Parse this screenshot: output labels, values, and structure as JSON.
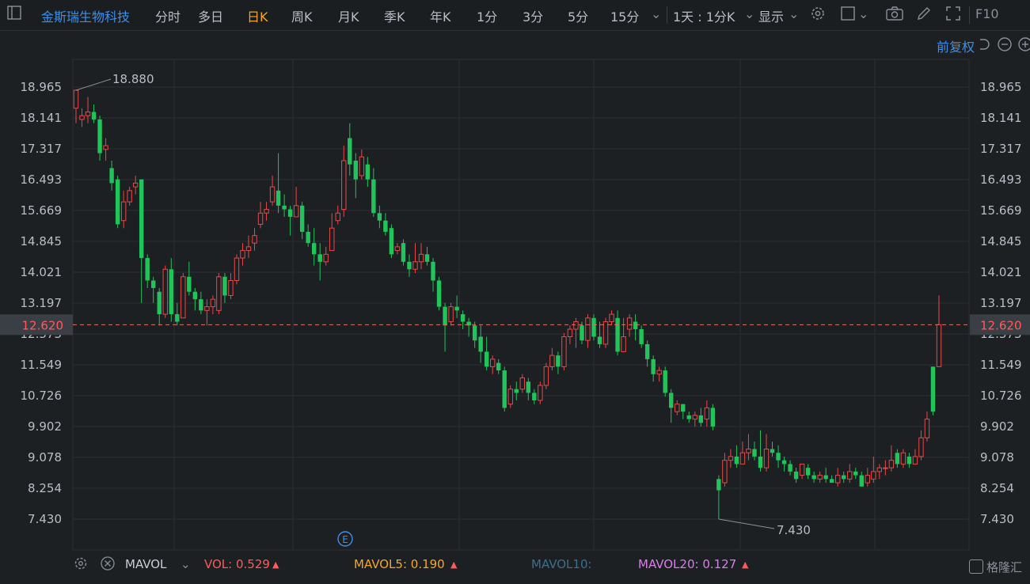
{
  "toolbar": {
    "stock_name": "金斯瑞生物科技",
    "tabs": [
      "分时",
      "多日",
      "日K",
      "周K",
      "月K",
      "季K",
      "年K",
      "1分",
      "3分",
      "5分",
      "15分"
    ],
    "active_tab": "日K",
    "period_select": "1天 : 1分K",
    "display_label": "显示",
    "f10_label": "F10"
  },
  "adjust_label": "前复权",
  "price_axis": {
    "ticks": [
      "18.965",
      "18.141",
      "17.317",
      "16.493",
      "15.669",
      "14.845",
      "14.021",
      "13.197",
      "12.373",
      "11.549",
      "10.726",
      "9.902",
      "9.078",
      "8.254",
      "7.430"
    ],
    "current_price": "12.620",
    "max_label": "18.880",
    "min_label": "7.430"
  },
  "colors": {
    "up": "#e84848",
    "down": "#21c35b",
    "background": "#1d2023",
    "grid": "#2c3035",
    "accent": "#f5a623"
  },
  "indicator": {
    "name": "MAVOL",
    "vol_label": "VOL: 0.529",
    "mavol5_label": "MAVOL5: 0.190",
    "mavol10_label": "MAVOL10:",
    "mavol20_label": "MAVOL20: 0.127"
  },
  "watermark": "格隆汇",
  "chart_data": {
    "type": "candlestick",
    "y_range": [
      7.0,
      19.4
    ],
    "candles": [
      [
        18.4,
        18.88,
        18.0,
        18.9
      ],
      [
        18.1,
        18.2,
        17.9,
        18.4
      ],
      [
        18.2,
        18.3,
        18.0,
        18.7
      ],
      [
        18.3,
        18.1,
        18.0,
        18.5
      ],
      [
        18.1,
        17.2,
        17.0,
        18.2
      ],
      [
        17.3,
        17.4,
        17.0,
        17.6
      ],
      [
        16.8,
        16.4,
        16.2,
        17.0
      ],
      [
        16.5,
        15.3,
        15.2,
        16.6
      ],
      [
        15.4,
        15.9,
        15.2,
        16.2
      ],
      [
        15.9,
        16.2,
        15.8,
        16.3
      ],
      [
        16.3,
        16.4,
        16.1,
        16.6
      ],
      [
        16.5,
        14.4,
        13.2,
        16.5
      ],
      [
        14.4,
        13.8,
        13.6,
        14.5
      ],
      [
        13.8,
        13.6,
        13.2,
        13.9
      ],
      [
        13.5,
        12.9,
        12.6,
        13.6
      ],
      [
        12.9,
        14.1,
        12.8,
        14.2
      ],
      [
        14.1,
        12.9,
        12.7,
        14.4
      ],
      [
        12.9,
        12.7,
        12.6,
        13.2
      ],
      [
        12.8,
        13.9,
        12.9,
        14.0
      ],
      [
        13.9,
        13.5,
        13.4,
        14.3
      ],
      [
        13.5,
        13.3,
        13.0,
        13.6
      ],
      [
        13.3,
        13.0,
        12.9,
        13.5
      ],
      [
        13.0,
        13.1,
        12.6,
        13.3
      ],
      [
        13.1,
        13.3,
        12.9,
        13.4
      ],
      [
        13.0,
        13.9,
        12.9,
        14.0
      ],
      [
        13.9,
        13.4,
        13.2,
        14.0
      ],
      [
        13.4,
        13.8,
        13.3,
        14.0
      ],
      [
        13.8,
        14.4,
        13.7,
        14.5
      ],
      [
        14.4,
        14.6,
        14.2,
        14.8
      ],
      [
        14.6,
        14.7,
        14.4,
        15.0
      ],
      [
        14.8,
        15.0,
        14.6,
        15.2
      ],
      [
        15.3,
        15.6,
        15.2,
        15.9
      ],
      [
        15.6,
        15.7,
        15.4,
        15.9
      ],
      [
        15.9,
        16.3,
        15.8,
        16.6
      ],
      [
        16.2,
        15.8,
        15.6,
        17.2
      ],
      [
        15.8,
        15.7,
        15.5,
        16.1
      ],
      [
        15.7,
        15.5,
        15.0,
        15.8
      ],
      [
        15.5,
        15.8,
        15.5,
        16.3
      ],
      [
        15.8,
        15.1,
        14.9,
        15.9
      ],
      [
        15.1,
        14.8,
        14.7,
        15.3
      ],
      [
        14.8,
        14.5,
        14.2,
        15.2
      ],
      [
        14.5,
        14.3,
        13.8,
        14.8
      ],
      [
        14.3,
        14.5,
        14.2,
        14.7
      ],
      [
        14.6,
        15.2,
        14.6,
        15.6
      ],
      [
        15.4,
        15.6,
        15.3,
        15.8
      ],
      [
        15.7,
        17.0,
        15.5,
        17.4
      ],
      [
        17.6,
        16.9,
        16.6,
        18.0
      ],
      [
        17.0,
        16.5,
        16.0,
        17.2
      ],
      [
        16.6,
        17.1,
        16.5,
        17.3
      ],
      [
        16.9,
        16.5,
        16.3,
        17.1
      ],
      [
        16.5,
        15.6,
        15.5,
        16.8
      ],
      [
        15.6,
        15.4,
        15.2,
        15.8
      ],
      [
        15.4,
        15.1,
        15.0,
        15.6
      ],
      [
        15.2,
        14.5,
        14.4,
        15.3
      ],
      [
        14.6,
        14.7,
        14.5,
        14.8
      ],
      [
        14.8,
        14.3,
        14.2,
        14.9
      ],
      [
        14.3,
        14.1,
        13.9,
        14.5
      ],
      [
        14.1,
        14.3,
        14.0,
        14.8
      ],
      [
        14.3,
        14.5,
        14.1,
        14.8
      ],
      [
        14.5,
        14.3,
        14.2,
        14.7
      ],
      [
        14.3,
        13.8,
        13.5,
        14.4
      ],
      [
        13.8,
        13.1,
        13.0,
        13.9
      ],
      [
        13.1,
        12.6,
        11.9,
        13.2
      ],
      [
        12.7,
        13.1,
        12.6,
        13.2
      ],
      [
        13.1,
        13.0,
        12.8,
        13.4
      ],
      [
        12.9,
        12.7,
        12.5,
        13.0
      ],
      [
        12.7,
        12.6,
        12.3,
        12.8
      ],
      [
        12.6,
        12.2,
        12.0,
        12.7
      ],
      [
        12.3,
        11.9,
        11.6,
        12.6
      ],
      [
        11.9,
        11.5,
        11.4,
        12.3
      ],
      [
        11.5,
        11.7,
        11.3,
        11.8
      ],
      [
        11.6,
        11.4,
        11.3,
        11.7
      ],
      [
        11.4,
        10.4,
        10.3,
        11.5
      ],
      [
        10.5,
        10.9,
        10.4,
        11.0
      ],
      [
        10.9,
        10.8,
        10.6,
        11.1
      ],
      [
        10.9,
        11.2,
        10.8,
        11.3
      ],
      [
        11.1,
        10.8,
        10.6,
        11.2
      ],
      [
        10.8,
        10.6,
        10.5,
        10.9
      ],
      [
        10.6,
        11.0,
        10.5,
        11.1
      ],
      [
        11.0,
        11.5,
        10.9,
        11.6
      ],
      [
        11.5,
        11.8,
        11.4,
        12.0
      ],
      [
        11.8,
        11.5,
        11.3,
        11.9
      ],
      [
        11.5,
        12.3,
        11.4,
        12.4
      ],
      [
        12.3,
        12.5,
        12.1,
        12.6
      ],
      [
        12.5,
        12.7,
        12.0,
        12.8
      ],
      [
        12.6,
        12.2,
        12.1,
        12.7
      ],
      [
        12.2,
        12.8,
        12.0,
        12.9
      ],
      [
        12.8,
        12.3,
        12.2,
        12.9
      ],
      [
        12.3,
        12.1,
        12.0,
        12.7
      ],
      [
        12.1,
        12.7,
        12.0,
        12.8
      ],
      [
        12.7,
        12.9,
        12.6,
        13.0
      ],
      [
        12.8,
        11.9,
        11.8,
        13.0
      ],
      [
        11.9,
        12.3,
        11.9,
        12.8
      ],
      [
        12.5,
        12.8,
        12.3,
        12.9
      ],
      [
        12.7,
        12.5,
        12.2,
        12.9
      ],
      [
        12.5,
        12.1,
        12.0,
        12.6
      ],
      [
        12.1,
        11.7,
        11.5,
        12.2
      ],
      [
        11.7,
        11.3,
        11.1,
        11.8
      ],
      [
        11.3,
        11.4,
        11.1,
        11.5
      ],
      [
        11.4,
        10.8,
        10.7,
        11.5
      ],
      [
        10.8,
        10.4,
        10.0,
        10.9
      ],
      [
        10.3,
        10.5,
        10.2,
        10.6
      ],
      [
        10.5,
        10.3,
        10.1,
        10.5
      ],
      [
        10.2,
        10.1,
        10.0,
        10.3
      ],
      [
        10.1,
        10.2,
        9.9,
        10.3
      ],
      [
        10.2,
        10.0,
        9.9,
        10.4
      ],
      [
        10.1,
        10.4,
        9.9,
        10.6
      ],
      [
        10.4,
        9.9,
        9.8,
        10.5
      ],
      [
        8.5,
        8.2,
        7.43,
        8.6
      ],
      [
        8.4,
        9.0,
        8.3,
        9.2
      ],
      [
        9.0,
        9.1,
        8.8,
        9.3
      ],
      [
        9.1,
        8.9,
        8.8,
        9.4
      ],
      [
        8.9,
        9.2,
        8.9,
        9.5
      ],
      [
        9.2,
        9.3,
        9.0,
        9.7
      ],
      [
        9.3,
        9.1,
        9.0,
        9.5
      ],
      [
        9.1,
        8.8,
        8.7,
        9.8
      ],
      [
        8.8,
        9.3,
        8.7,
        9.7
      ],
      [
        9.3,
        9.2,
        9.1,
        9.5
      ],
      [
        9.2,
        9.0,
        8.8,
        9.4
      ],
      [
        9.0,
        8.9,
        8.7,
        9.1
      ],
      [
        8.9,
        8.7,
        8.6,
        9.0
      ],
      [
        8.7,
        8.5,
        8.4,
        8.8
      ],
      [
        8.6,
        8.9,
        8.5,
        8.9
      ],
      [
        8.8,
        8.6,
        8.5,
        8.9
      ],
      [
        8.6,
        8.5,
        8.4,
        8.7
      ],
      [
        8.5,
        8.6,
        8.4,
        8.7
      ],
      [
        8.6,
        8.5,
        8.4,
        8.8
      ],
      [
        8.5,
        8.4,
        8.4,
        8.6
      ],
      [
        8.4,
        8.6,
        8.3,
        8.8
      ],
      [
        8.6,
        8.5,
        8.4,
        8.7
      ],
      [
        8.5,
        8.7,
        8.4,
        8.9
      ],
      [
        8.7,
        8.6,
        8.5,
        8.8
      ],
      [
        8.6,
        8.3,
        8.3,
        8.7
      ],
      [
        8.4,
        8.6,
        8.3,
        8.8
      ],
      [
        8.5,
        8.7,
        8.4,
        9.1
      ],
      [
        8.7,
        8.8,
        8.5,
        8.9
      ],
      [
        8.8,
        8.8,
        8.6,
        9.0
      ],
      [
        8.8,
        9.0,
        8.7,
        9.4
      ],
      [
        9.2,
        8.9,
        8.8,
        9.3
      ],
      [
        8.9,
        9.2,
        8.8,
        9.3
      ],
      [
        9.1,
        8.9,
        8.8,
        9.2
      ],
      [
        8.9,
        9.1,
        8.9,
        9.3
      ],
      [
        9.1,
        9.6,
        9.0,
        9.8
      ],
      [
        9.6,
        10.1,
        9.5,
        10.3
      ],
      [
        11.5,
        10.3,
        10.2,
        11.5
      ],
      [
        11.5,
        12.62,
        11.5,
        13.4
      ]
    ]
  }
}
